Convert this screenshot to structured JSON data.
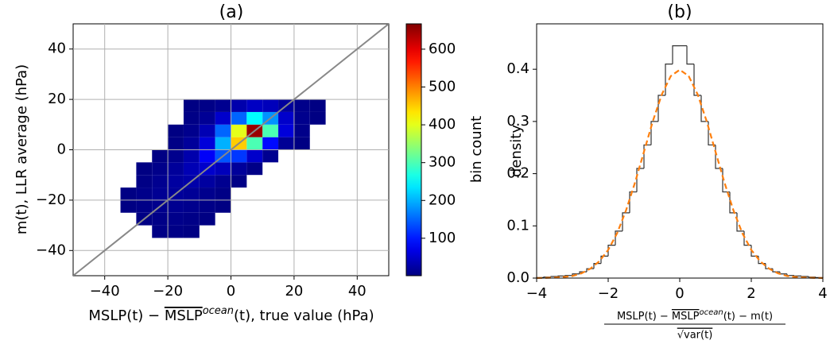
{
  "chart_data": [
    {
      "type": "heatmap",
      "title": "(a)",
      "xlabel": [
        "MSLP(t) − ",
        "MSLP",
        "ocean",
        "(t), true value (hPa)"
      ],
      "ylabel": "m(t), LLR average (hPa)",
      "xbins": [
        -40,
        -35,
        -30,
        -25,
        -20,
        -15,
        -10,
        -5,
        0,
        5,
        10,
        15,
        20,
        25,
        30
      ],
      "ybins": [
        -35,
        -30,
        -25,
        -20,
        -15,
        -10,
        -5,
        0,
        5,
        10,
        15,
        20
      ],
      "values": [
        [
          null,
          null,
          null,
          5,
          5,
          3,
          null,
          null,
          null,
          null,
          null,
          null,
          null,
          null
        ],
        [
          null,
          null,
          4,
          6,
          8,
          6,
          3,
          null,
          null,
          null,
          null,
          null,
          null,
          null
        ],
        [
          null,
          3,
          6,
          10,
          12,
          10,
          6,
          3,
          null,
          null,
          null,
          null,
          null,
          null
        ],
        [
          null,
          4,
          8,
          14,
          18,
          16,
          10,
          5,
          null,
          null,
          null,
          null,
          null,
          null
        ],
        [
          null,
          null,
          5,
          12,
          22,
          28,
          22,
          12,
          5,
          null,
          null,
          null,
          null,
          null
        ],
        [
          null,
          null,
          3,
          8,
          18,
          35,
          50,
          40,
          18,
          6,
          null,
          null,
          null,
          null
        ],
        [
          null,
          null,
          null,
          4,
          10,
          30,
          80,
          140,
          120,
          50,
          12,
          null,
          null,
          null
        ],
        [
          null,
          null,
          null,
          null,
          5,
          18,
          60,
          200,
          450,
          300,
          90,
          15,
          3,
          null
        ],
        [
          null,
          null,
          null,
          null,
          3,
          10,
          35,
          150,
          400,
          650,
          300,
          60,
          8,
          null
        ],
        [
          null,
          null,
          null,
          null,
          null,
          5,
          15,
          50,
          150,
          250,
          180,
          50,
          10,
          3
        ],
        [
          null,
          null,
          null,
          null,
          null,
          3,
          6,
          12,
          30,
          45,
          40,
          20,
          8,
          3
        ]
      ],
      "xlim": [
        -50,
        50
      ],
      "ylim": [
        -50,
        50
      ],
      "xticks": [
        {
          "value": -40,
          "label": "−40"
        },
        {
          "value": -20,
          "label": "−20"
        },
        0,
        20,
        40
      ],
      "yticks": [
        {
          "value": -40,
          "label": "−40"
        },
        {
          "value": -20,
          "label": "−20"
        },
        0,
        20,
        40
      ],
      "grid": true,
      "identity_line_color": "#888888",
      "colorbar": {
        "label": "bin count",
        "lim": [
          1,
          667
        ],
        "ticks": [
          100,
          200,
          300,
          400,
          500,
          600
        ],
        "colormap": "jet"
      }
    },
    {
      "type": "histogram",
      "title": "(b)",
      "xlabel": {
        "numerator": [
          "MSLP(t) − ",
          "MSLP",
          "ocean",
          "(t) − m(t)"
        ],
        "denominator": "√var(t)"
      },
      "ylabel": "density",
      "bins": [
        -4,
        -3.8,
        -3.6,
        -3.4,
        -3.2,
        -3,
        -2.8,
        -2.6,
        -2.4,
        -2.2,
        -2,
        -1.8,
        -1.6,
        -1.4,
        -1.2,
        -1,
        -0.8,
        -0.6,
        -0.4,
        -0.2,
        0,
        0.2,
        0.4,
        0.6,
        0.8,
        1,
        1.2,
        1.4,
        1.6,
        1.8,
        2,
        2.2,
        2.4,
        2.6,
        2.8,
        3,
        3.2,
        3.4,
        3.6,
        3.8,
        4
      ],
      "values": [
        0.001,
        0.002,
        0.003,
        0.004,
        0.005,
        0.008,
        0.012,
        0.018,
        0.028,
        0.042,
        0.063,
        0.09,
        0.125,
        0.165,
        0.21,
        0.255,
        0.3,
        0.35,
        0.41,
        0.445,
        0.445,
        0.41,
        0.35,
        0.3,
        0.255,
        0.21,
        0.165,
        0.125,
        0.09,
        0.063,
        0.042,
        0.028,
        0.018,
        0.012,
        0.008,
        0.005,
        0.004,
        0.003,
        0.002,
        0.001
      ],
      "color": "#333333",
      "fit": {
        "x": [
          -4,
          -3.75,
          -3.5,
          -3.25,
          -3,
          -2.75,
          -2.5,
          -2.25,
          -2,
          -1.75,
          -1.5,
          -1.25,
          -1,
          -0.75,
          -0.5,
          -0.25,
          0,
          0.25,
          0.5,
          0.75,
          1,
          1.25,
          1.5,
          1.75,
          2,
          2.25,
          2.5,
          2.75,
          3,
          3.25,
          3.5,
          3.75,
          4
        ],
        "values": [
          0.0001,
          0.0004,
          0.001,
          0.002,
          0.004,
          0.009,
          0.018,
          0.032,
          0.054,
          0.086,
          0.13,
          0.183,
          0.242,
          0.301,
          0.352,
          0.387,
          0.399,
          0.387,
          0.352,
          0.301,
          0.242,
          0.183,
          0.13,
          0.086,
          0.054,
          0.032,
          0.018,
          0.009,
          0.004,
          0.002,
          0.001,
          0.0004,
          0.0001
        ],
        "color": "#ff7f0e"
      },
      "xlim": [
        -4,
        4
      ],
      "ylim": [
        0,
        0.487
      ],
      "xticks": [
        {
          "value": -4,
          "label": "−4"
        },
        {
          "value": -2,
          "label": "−2"
        },
        0,
        2,
        4
      ],
      "yticks": [
        {
          "value": 0,
          "label": "0.0"
        },
        0.1,
        0.2,
        0.3,
        0.4
      ]
    }
  ]
}
